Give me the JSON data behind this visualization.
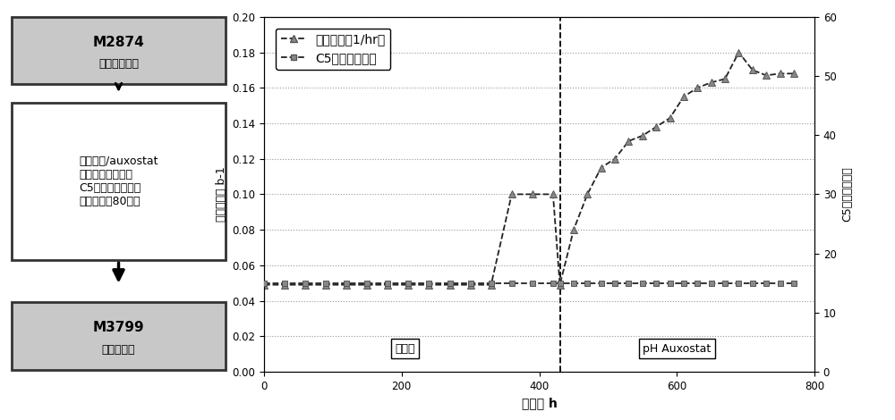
{
  "growth_rate_x": [
    0,
    30,
    60,
    90,
    120,
    150,
    180,
    210,
    240,
    270,
    300,
    330,
    360,
    390,
    420,
    430,
    450,
    470,
    490,
    510,
    530,
    550,
    570,
    590,
    610,
    630,
    650,
    670,
    690,
    710,
    730,
    750,
    770
  ],
  "growth_rate_y": [
    0.049,
    0.049,
    0.049,
    0.049,
    0.049,
    0.049,
    0.049,
    0.049,
    0.049,
    0.049,
    0.049,
    0.049,
    0.1,
    0.1,
    0.1,
    0.049,
    0.08,
    0.1,
    0.115,
    0.12,
    0.13,
    0.133,
    0.138,
    0.143,
    0.155,
    0.16,
    0.163,
    0.165,
    0.18,
    0.17,
    0.167,
    0.168,
    0.168
  ],
  "c5_pct_x": [
    0,
    30,
    60,
    90,
    120,
    150,
    180,
    210,
    240,
    270,
    300,
    330,
    360,
    390,
    420,
    430,
    450,
    470,
    490,
    510,
    530,
    550,
    570,
    590,
    610,
    630,
    650,
    670,
    690,
    710,
    730,
    750,
    770
  ],
  "c5_pct_y": [
    15,
    15,
    15,
    15,
    15,
    15,
    15,
    15,
    15,
    15,
    15,
    15,
    15,
    15,
    15,
    15,
    15,
    15,
    15,
    15,
    15,
    15,
    15,
    15,
    15,
    15,
    15,
    15,
    15,
    15,
    15,
    15,
    15
  ],
  "vline_x": 430,
  "ylim_left": [
    0.0,
    0.2
  ],
  "ylim_right": [
    0,
    60
  ],
  "xlim": [
    0,
    800
  ],
  "xlabel": "时间， h",
  "ylabel_left": "生长速率， b-1",
  "ylabel_right": "C5液剂的百分比",
  "legend_growth": "生长速率（1/hr）",
  "legend_c5": "C5液剂的百分比",
  "label_chemostat": "恒化器",
  "label_auxostat": "pH Auxostat",
  "box1_title": "M2874",
  "box1_sub": "（工程化的）",
  "box2_text": "在恒化器/auxostat\n中于硬木衍生的含\nC5糖的液剂上进行\n的选择（～80代）",
  "box3_title": "M3799",
  "box3_sub": "（适应的）",
  "line_color": "#222222",
  "grid_color": "#999999",
  "marker_color": "#888888"
}
